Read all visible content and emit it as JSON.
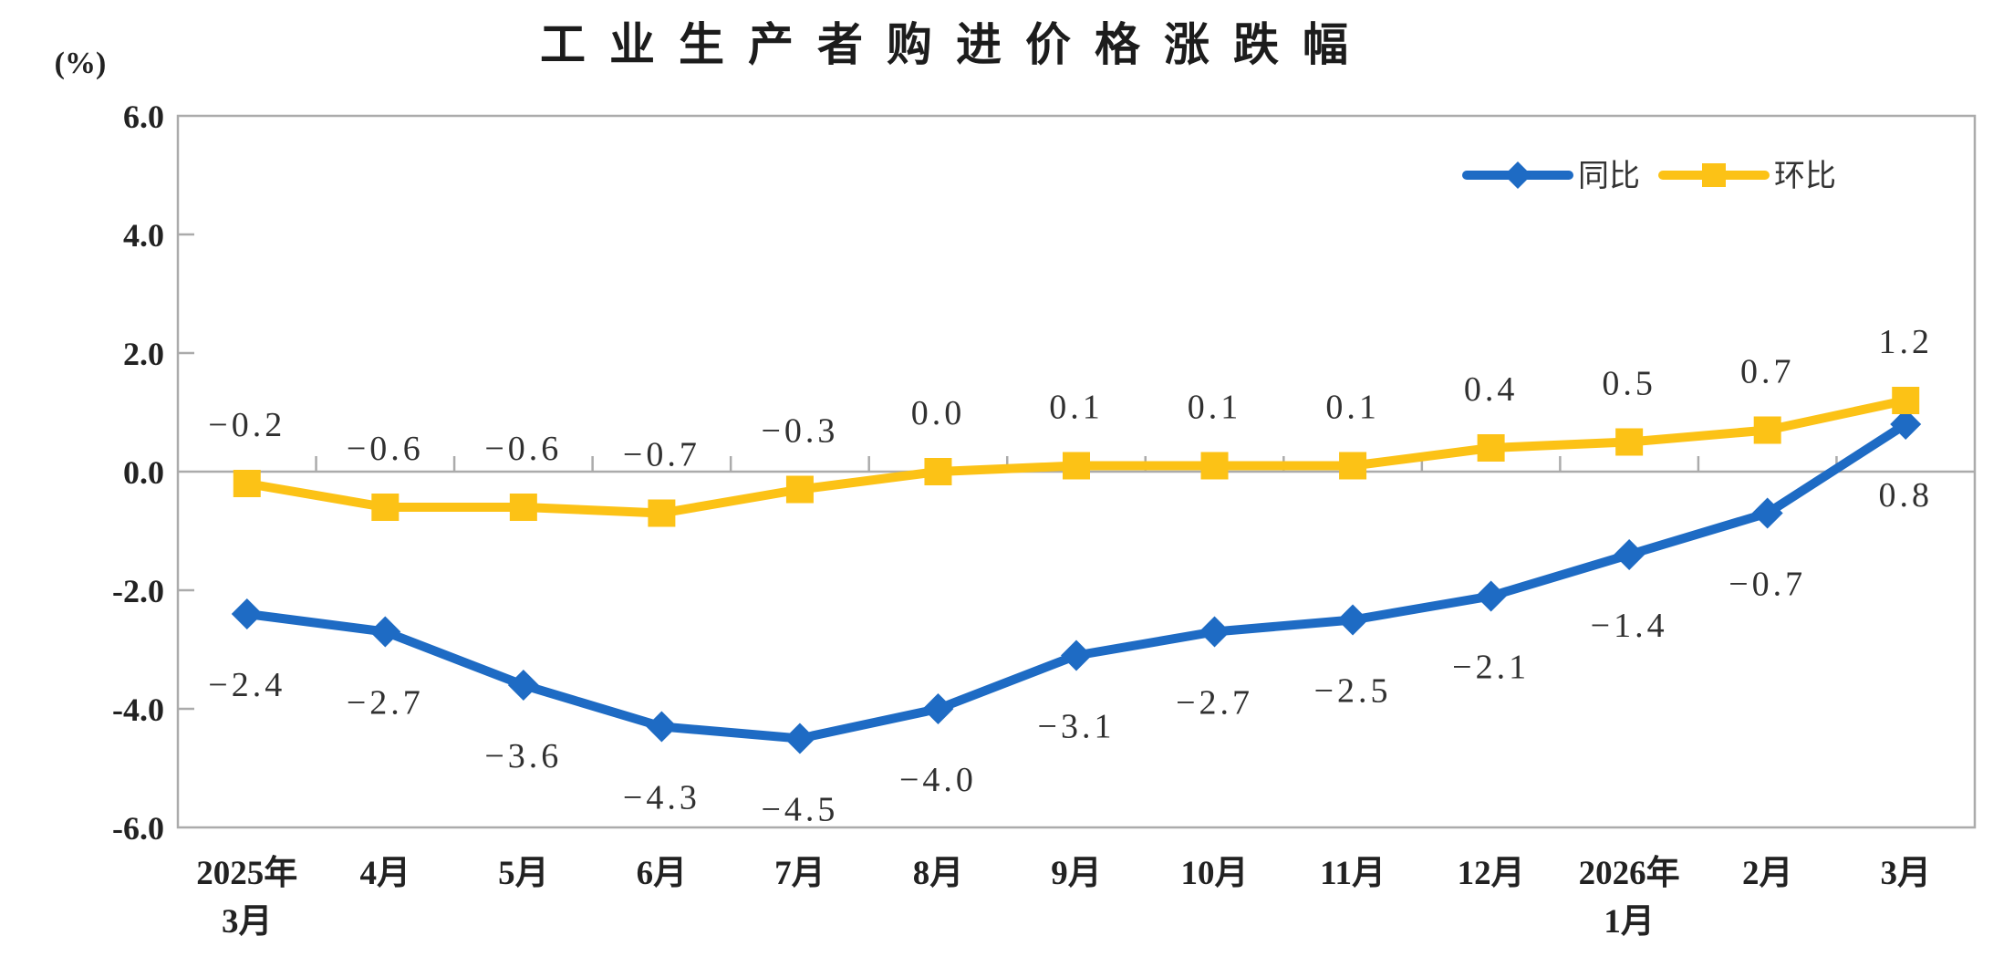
{
  "page": {
    "title": "工业生产者购进价格涨跌幅",
    "unit_label": "(%)"
  },
  "legend": {
    "items": [
      {
        "label": "同比",
        "color": "#1E6BC4",
        "marker": "diamond"
      },
      {
        "label": "环比",
        "color": "#FCC216",
        "marker": "square"
      }
    ]
  },
  "chart_data": {
    "type": "line",
    "title": "工业生产者购进价格涨跌幅",
    "unit": "(%)",
    "categories": [
      "2025年3月",
      "4月",
      "5月",
      "6月",
      "7月",
      "8月",
      "9月",
      "10月",
      "11月",
      "12月",
      "2026年1月",
      "2月",
      "3月"
    ],
    "category_label_lines": [
      [
        "2025年",
        "3月"
      ],
      [
        "4月"
      ],
      [
        "5月"
      ],
      [
        "6月"
      ],
      [
        "7月"
      ],
      [
        "8月"
      ],
      [
        "9月"
      ],
      [
        "10月"
      ],
      [
        "11月"
      ],
      [
        "12月"
      ],
      [
        "2026年",
        "1月"
      ],
      [
        "2月"
      ],
      [
        "3月"
      ]
    ],
    "series": [
      {
        "id": "yoy",
        "name": "同比",
        "color": "#1E6BC4",
        "marker": "diamond",
        "label_position": "below",
        "values": [
          -2.4,
          -2.7,
          -3.6,
          -4.3,
          -4.5,
          -4.0,
          -3.1,
          -2.7,
          -2.5,
          -2.1,
          -1.4,
          -0.7,
          0.8
        ]
      },
      {
        "id": "mom",
        "name": "环比",
        "color": "#FCC216",
        "marker": "square",
        "label_position": "above",
        "values": [
          -0.2,
          -0.6,
          -0.6,
          -0.7,
          -0.3,
          0.0,
          0.1,
          0.1,
          0.1,
          0.4,
          0.5,
          0.7,
          1.2
        ]
      }
    ],
    "ylim": [
      -6.0,
      6.0
    ],
    "yticks": [
      6.0,
      4.0,
      2.0,
      0.0,
      -2.0,
      -4.0,
      -6.0
    ],
    "ytick_labels": [
      "6.0",
      "4.0",
      "2.0",
      "0.0",
      "-2.0",
      "-4.0",
      "-6.0"
    ],
    "data_labels": true,
    "grid": false,
    "legend_position": "top-right",
    "axis_color": "#ABABAB",
    "label_color": "#303030"
  }
}
